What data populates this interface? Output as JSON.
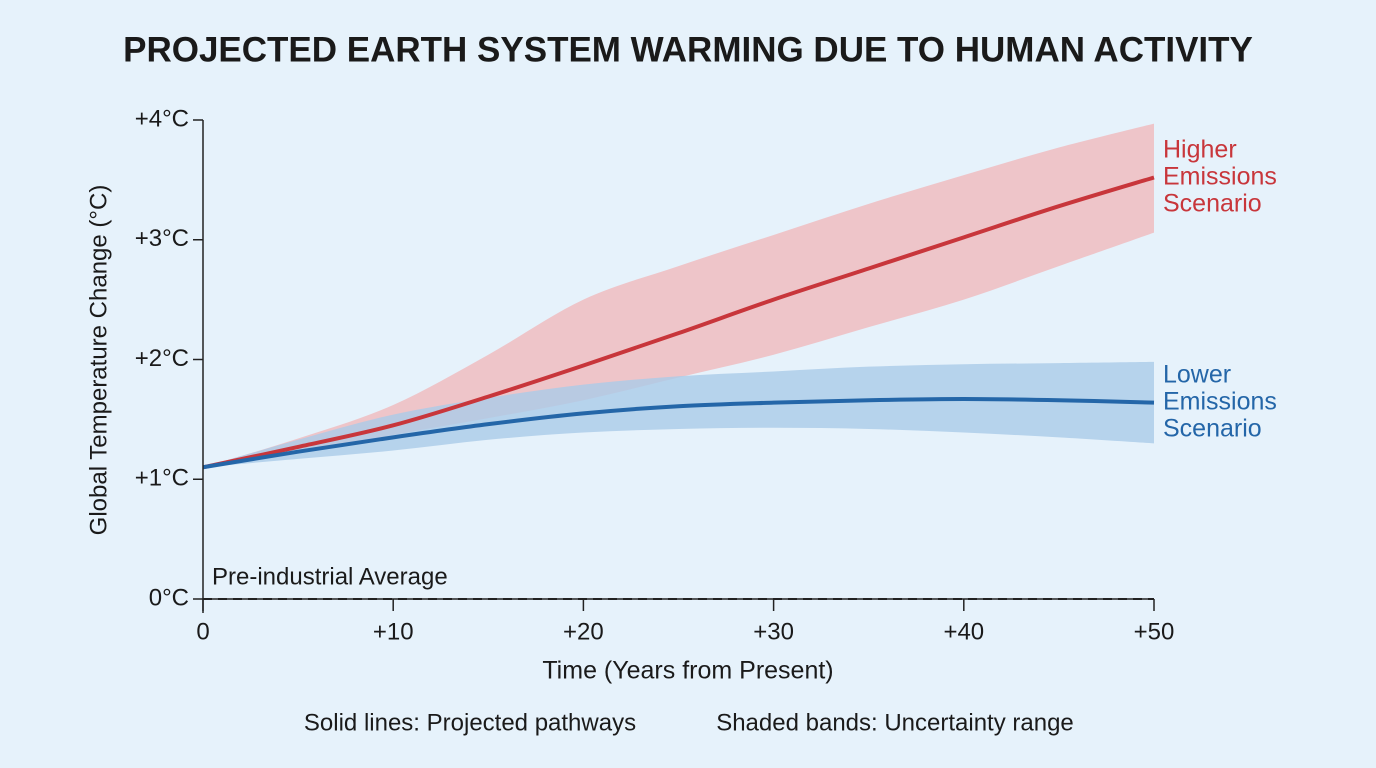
{
  "chart_data": {
    "type": "line",
    "title": "PROJECTED EARTH SYSTEM WARMING DUE TO HUMAN ACTIVITY",
    "x_label": "Time (Years from Present)",
    "y_label": "Global Temperature Change (°C)",
    "x": [
      0,
      5,
      10,
      15,
      20,
      25,
      30,
      35,
      40,
      45,
      50
    ],
    "xlim": [
      0,
      50
    ],
    "xticks": [
      0,
      {
        "value": 10,
        "label": "+10"
      },
      {
        "value": 20,
        "label": "+20"
      },
      {
        "value": 30,
        "label": "+30"
      },
      {
        "value": 40,
        "label": "+40"
      },
      {
        "value": 50,
        "label": "+50"
      }
    ],
    "ylim": [
      0,
      4
    ],
    "yticks": [
      {
        "value": 0,
        "label": "0°C"
      },
      {
        "value": 1,
        "label": "+1°C"
      },
      {
        "value": 2,
        "label": "+2°C"
      },
      {
        "value": 3,
        "label": "+3°C"
      },
      {
        "value": 4,
        "label": "+4°C"
      }
    ],
    "grid": false,
    "baseline": {
      "value": 0,
      "label": "Pre-industrial Average"
    },
    "notes": [
      "Solid lines: Projected pathways",
      "Shaded bands: Uncertainty range"
    ],
    "series": [
      {
        "name": "Higher Emissions Scenario",
        "color": "#c8363b",
        "band_color": "#f0b9bd",
        "values": [
          1.1,
          1.27,
          1.45,
          1.69,
          1.95,
          2.22,
          2.5,
          2.76,
          3.02,
          3.28,
          3.52
        ],
        "upper": [
          1.1,
          1.34,
          1.62,
          2.04,
          2.5,
          2.78,
          3.04,
          3.3,
          3.54,
          3.77,
          3.97
        ],
        "lower": [
          1.1,
          1.22,
          1.37,
          1.51,
          1.66,
          1.85,
          2.04,
          2.27,
          2.5,
          2.78,
          3.06
        ]
      },
      {
        "name": "Lower Emissions Scenario",
        "color": "#2466a8",
        "band_color": "#aacbe8",
        "values": [
          1.1,
          1.23,
          1.35,
          1.46,
          1.55,
          1.61,
          1.64,
          1.66,
          1.67,
          1.66,
          1.64
        ],
        "upper": [
          1.1,
          1.33,
          1.54,
          1.68,
          1.79,
          1.86,
          1.9,
          1.94,
          1.96,
          1.97,
          1.98
        ],
        "lower": [
          1.1,
          1.17,
          1.24,
          1.33,
          1.39,
          1.42,
          1.43,
          1.42,
          1.39,
          1.35,
          1.3
        ]
      }
    ]
  }
}
